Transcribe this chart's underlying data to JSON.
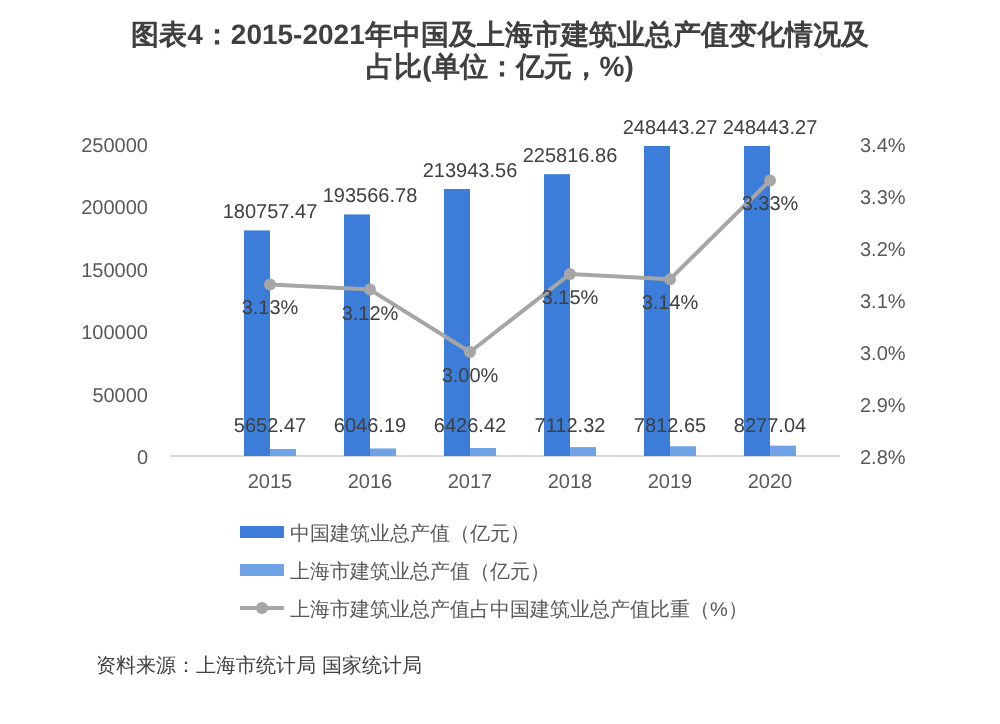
{
  "chart_data": {
    "type": "bar",
    "title": "图表4：2015-2021年中国及上海市建筑业总产值变化情况及占比(单位：亿元，%)",
    "categories": [
      "2015",
      "2016",
      "2017",
      "2018",
      "2019",
      "2020"
    ],
    "series": [
      {
        "name": "中国建筑业总产值（亿元）",
        "color": "#3b7dd8",
        "values": [
          180757.47,
          193566.78,
          213943.56,
          225816.86,
          248443.27,
          248443.27
        ],
        "data_labels": true
      },
      {
        "name": "上海市建筑业总产值（亿元）",
        "color": "#6fa3e6",
        "values": [
          5652.47,
          6046.19,
          6426.42,
          7112.32,
          7812.65,
          8277.04
        ],
        "data_labels": true
      },
      {
        "name": "上海市建筑业总产值占中国建筑业总产值比重（%）",
        "type": "line",
        "axis": "y2",
        "color": "#a6a6a6",
        "marker": "circle",
        "values": [
          3.13,
          3.12,
          3.0,
          3.15,
          3.14,
          3.33
        ],
        "value_labels": [
          "3.13%",
          "3.12%",
          "3.00%",
          "3.15%",
          "3.14%",
          "3.33%"
        ]
      }
    ],
    "ylim": [
      0,
      250000
    ],
    "yticks": [
      0,
      50000,
      100000,
      150000,
      200000,
      250000
    ],
    "y2lim": [
      2.8,
      3.4
    ],
    "y2ticks": [
      {
        "value": 2.8,
        "label": "2.8%"
      },
      {
        "value": 2.9,
        "label": "2.9%"
      },
      {
        "value": 3.0,
        "label": "3.0%"
      },
      {
        "value": 3.1,
        "label": "3.1%"
      },
      {
        "value": 3.2,
        "label": "3.2%"
      },
      {
        "value": 3.3,
        "label": "3.3%"
      },
      {
        "value": 3.4,
        "label": "3.4%"
      }
    ],
    "legend": "bottom",
    "annotations": [
      "资料来源：上海市统计局 国家统计局"
    ]
  }
}
